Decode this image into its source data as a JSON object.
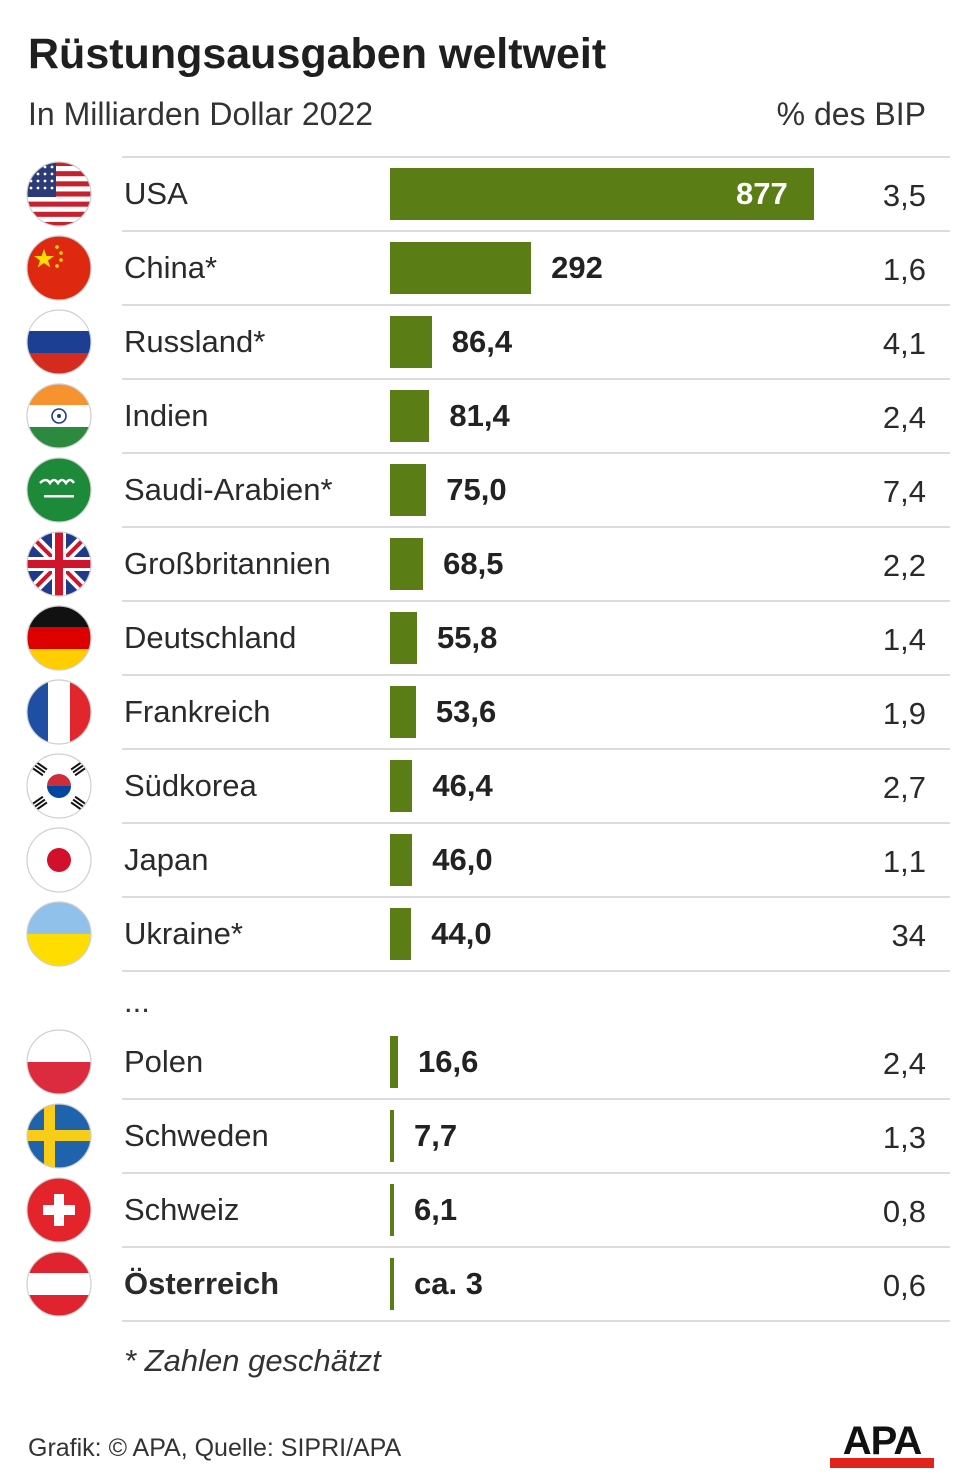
{
  "title": "Rüstungsausgaben weltweit",
  "subtitle": "In Milliarden Dollar 2022",
  "bip_header": "% des BIP",
  "ellipsis": "...",
  "footnote": "* Zahlen geschätzt",
  "source": "Grafik: © APA, Quelle: SIPRI/APA",
  "logo_text": "APA",
  "colors": {
    "bar": "#5b7d15",
    "logo_red": "#e2231a"
  },
  "chart_data": {
    "type": "bar",
    "orientation": "horizontal",
    "title": "Rüstungsausgaben weltweit",
    "subtitle": "In Milliarden Dollar 2022",
    "categories": [
      "USA",
      "China*",
      "Russland*",
      "Indien",
      "Saudi-Arabien*",
      "Großbritannien",
      "Deutschland",
      "Frankreich",
      "Südkorea",
      "Japan",
      "Ukraine*",
      "Polen",
      "Schweden",
      "Schweiz",
      "Österreich"
    ],
    "series": [
      {
        "values": [
          877,
          292,
          86.4,
          81.4,
          75.0,
          68.5,
          55.8,
          53.6,
          46.4,
          46.0,
          44.0,
          16.6,
          7.7,
          6.1,
          3
        ]
      },
      {
        "name": "% des BIP",
        "values": [
          3.5,
          1.6,
          4.1,
          2.4,
          7.4,
          2.2,
          1.4,
          1.9,
          2.7,
          1.1,
          34,
          2.4,
          1.3,
          0.8,
          0.6
        ]
      }
    ],
    "rows": [
      {
        "country": "USA",
        "flag": "usa-flag-icon",
        "value": 877,
        "label": "877",
        "bip": "3,5"
      },
      {
        "country": "China*",
        "flag": "china-flag-icon",
        "value": 292,
        "label": "292",
        "bip": "1,6"
      },
      {
        "country": "Russland*",
        "flag": "russia-flag-icon",
        "value": 86.4,
        "label": "86,4",
        "bip": "4,1"
      },
      {
        "country": "Indien",
        "flag": "india-flag-icon",
        "value": 81.4,
        "label": "81,4",
        "bip": "2,4"
      },
      {
        "country": "Saudi-Arabien*",
        "flag": "saudi-arabia-flag-icon",
        "value": 75.0,
        "label": "75,0",
        "bip": "7,4"
      },
      {
        "country": "Großbritannien",
        "flag": "uk-flag-icon",
        "value": 68.5,
        "label": "68,5",
        "bip": "2,2"
      },
      {
        "country": "Deutschland",
        "flag": "germany-flag-icon",
        "value": 55.8,
        "label": "55,8",
        "bip": "1,4"
      },
      {
        "country": "Frankreich",
        "flag": "france-flag-icon",
        "value": 53.6,
        "label": "53,6",
        "bip": "1,9"
      },
      {
        "country": "Südkorea",
        "flag": "south-korea-flag-icon",
        "value": 46.4,
        "label": "46,4",
        "bip": "2,7"
      },
      {
        "country": "Japan",
        "flag": "japan-flag-icon",
        "value": 46.0,
        "label": "46,0",
        "bip": "1,1"
      },
      {
        "country": "Ukraine*",
        "flag": "ukraine-flag-icon",
        "value": 44.0,
        "label": "44,0",
        "bip": "34"
      },
      {
        "country": "Polen",
        "flag": "poland-flag-icon",
        "value": 16.6,
        "label": "16,6",
        "bip": "2,4"
      },
      {
        "country": "Schweden",
        "flag": "sweden-flag-icon",
        "value": 7.7,
        "label": "7,7",
        "bip": "1,3"
      },
      {
        "country": "Schweiz",
        "flag": "switzerland-flag-icon",
        "value": 6.1,
        "label": "6,1",
        "bip": "0,8"
      },
      {
        "country": "Österreich",
        "flag": "austria-flag-icon",
        "value": 3,
        "label": "ca. 3",
        "bip": "0,6",
        "bold": true
      }
    ],
    "grid": false,
    "legend": "none"
  }
}
